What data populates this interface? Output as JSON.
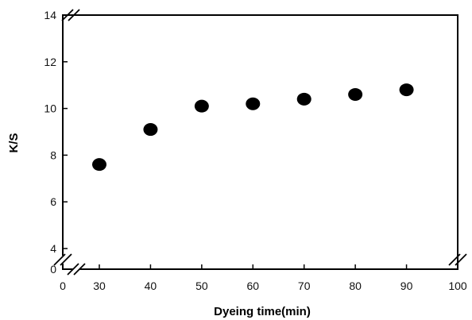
{
  "chart_data": {
    "type": "scatter",
    "title": "",
    "xlabel": "Dyeing time(min)",
    "ylabel": "K/S",
    "xlim": [
      0,
      100
    ],
    "x_axis_break": "between 0 and 30",
    "x_ticks": [
      0,
      30,
      40,
      50,
      60,
      70,
      80,
      90,
      100
    ],
    "ylim": [
      0,
      14
    ],
    "y_axis_break": "between 0 and 4",
    "y_ticks": [
      0,
      4,
      6,
      8,
      10,
      12,
      14
    ],
    "grid": false,
    "legend": "none",
    "marker_color": "#000000",
    "series": [
      {
        "x": [
          30,
          40,
          50,
          60,
          70,
          80,
          90
        ],
        "y": [
          7.6,
          9.1,
          10.1,
          10.2,
          10.4,
          10.6,
          10.8
        ]
      }
    ]
  }
}
